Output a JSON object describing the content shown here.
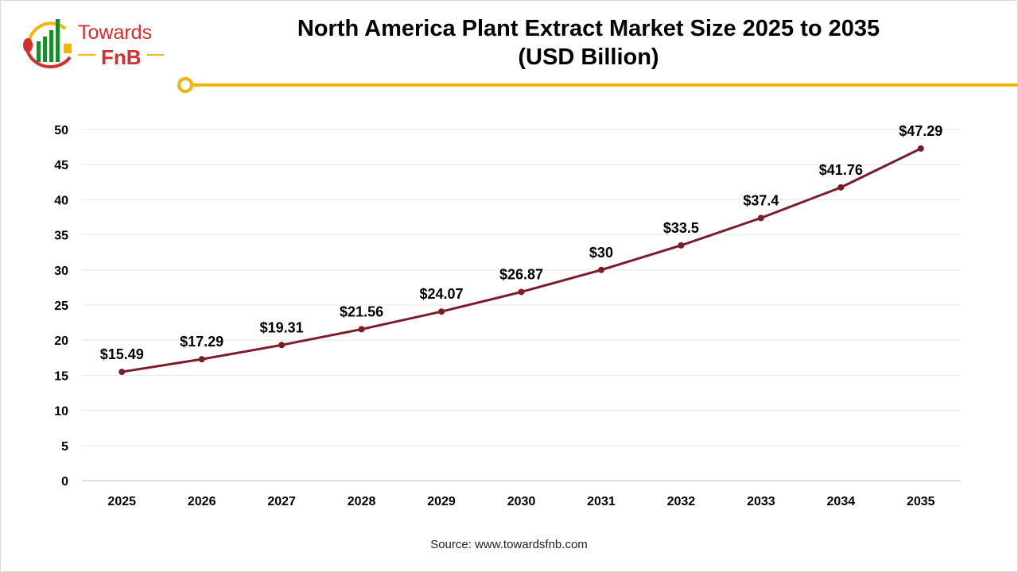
{
  "logo": {
    "text_top": "Towards",
    "text_bottom": "FnB"
  },
  "colors": {
    "line": "#7a1c2a",
    "accent": "#f4b400",
    "grid": "#e6e6e6"
  },
  "chart_data": {
    "type": "line",
    "title": "North America Plant Extract Market Size 2025 to 2035",
    "subtitle": "(USD Billion)",
    "categories": [
      "2025",
      "2026",
      "2027",
      "2028",
      "2029",
      "2030",
      "2031",
      "2032",
      "2033",
      "2034",
      "2035"
    ],
    "values": [
      15.49,
      17.29,
      19.31,
      21.56,
      24.07,
      26.87,
      30,
      33.5,
      37.4,
      41.76,
      47.29
    ],
    "data_labels": [
      "$15.49",
      "$17.29",
      "$19.31",
      "$21.56",
      "$24.07",
      "$26.87",
      "$30",
      "$33.5",
      "$37.4",
      "$41.76",
      "$47.29"
    ],
    "yticks": [
      0,
      5,
      10,
      15,
      20,
      25,
      30,
      35,
      40,
      45,
      50
    ],
    "ylim": [
      0,
      50
    ],
    "grid": true,
    "legend": "none"
  },
  "source": "Source: www.towardsfnb.com"
}
